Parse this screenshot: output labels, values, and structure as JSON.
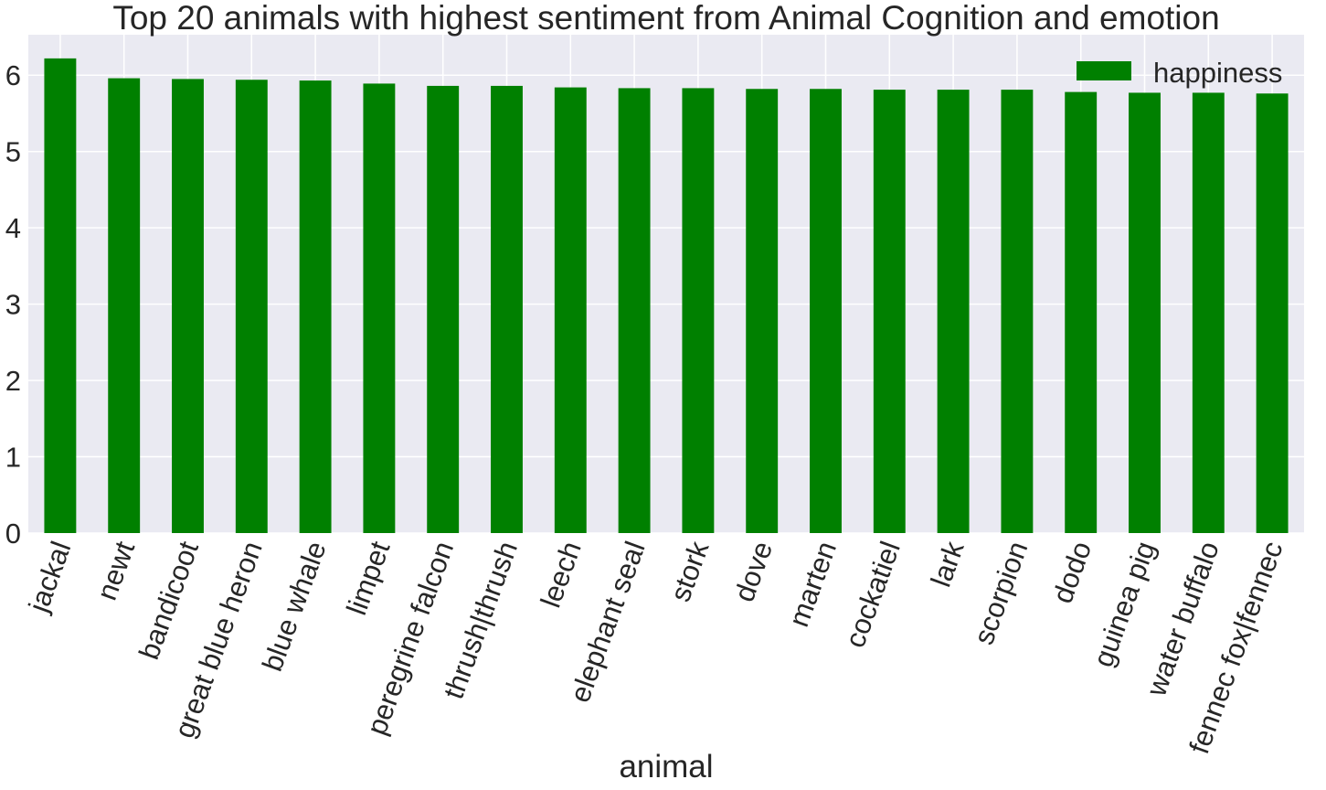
{
  "chart_data": {
    "type": "bar",
    "title": "Top 20 animals with highest sentiment from Animal Cognition and emotion",
    "xlabel": "animal",
    "ylabel": "",
    "categories": [
      "jackal",
      "newt",
      "bandicoot",
      "great blue heron",
      "blue whale",
      "limpet",
      "peregrine falcon",
      "thrush|thrush",
      "leech",
      "elephant seal",
      "stork",
      "dove",
      "marten",
      "cockatiel",
      "lark",
      "scorpion",
      "dodo",
      "guinea pig",
      "water buffalo",
      "fennec fox|fennec"
    ],
    "series": [
      {
        "name": "happiness",
        "color": "#008000",
        "values": [
          6.22,
          5.96,
          5.95,
          5.94,
          5.93,
          5.89,
          5.86,
          5.86,
          5.84,
          5.83,
          5.83,
          5.82,
          5.82,
          5.81,
          5.81,
          5.81,
          5.78,
          5.77,
          5.77,
          5.76
        ]
      }
    ],
    "yticks": [
      0,
      1,
      2,
      3,
      4,
      5,
      6
    ],
    "ylim": [
      0,
      6.53
    ],
    "grid": true,
    "legend_position": "top-right",
    "background_color": "#eaeaf2",
    "grid_color": "#ffffff"
  }
}
